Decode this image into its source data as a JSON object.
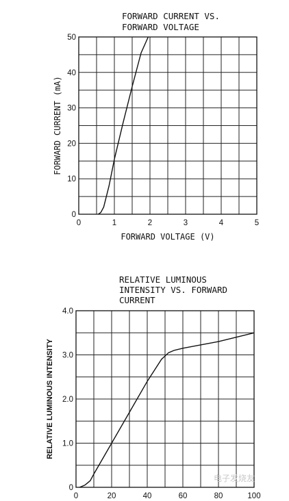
{
  "chart_data": [
    {
      "type": "line",
      "title_lines": [
        "FORWARD CURRENT VS.",
        "FORWARD VOLTAGE"
      ],
      "xlabel": "FORWARD VOLTAGE (V)",
      "ylabel": "FORWARD CURRENT (mA)",
      "xlim": [
        0,
        5
      ],
      "ylim": [
        0,
        50
      ],
      "x_ticks": [
        "0",
        "1",
        "2",
        "3",
        "4",
        "5"
      ],
      "y_ticks": [
        "0",
        "10",
        "20",
        "30",
        "40",
        "50"
      ],
      "grid": true,
      "x": [
        0.55,
        0.62,
        0.7,
        0.85,
        1.0,
        1.25,
        1.5,
        1.75,
        1.95
      ],
      "y": [
        0,
        0.5,
        2,
        8,
        15.5,
        26,
        36,
        45.5,
        50
      ]
    },
    {
      "type": "line",
      "title_lines": [
        "RELATIVE LUMINOUS",
        "INTENSITY VS. FORWARD",
        "CURRENT"
      ],
      "xlabel": "",
      "ylabel": "RELATIVE LUMINOUS INTENSITY",
      "xlim": [
        0,
        100
      ],
      "ylim": [
        0,
        4.0
      ],
      "x_ticks": [
        "0",
        "20",
        "40",
        "60",
        "80",
        "100"
      ],
      "y_ticks": [
        "0",
        "1.0",
        "2.0",
        "3.0",
        "4.0"
      ],
      "grid": true,
      "x": [
        2,
        5,
        8,
        10,
        20,
        30,
        40,
        48,
        52,
        55,
        60,
        80,
        100
      ],
      "y": [
        0,
        0.05,
        0.15,
        0.3,
        1.0,
        1.7,
        2.4,
        2.9,
        3.05,
        3.1,
        3.15,
        3.3,
        3.5
      ]
    }
  ],
  "watermark": "电子发烧友"
}
